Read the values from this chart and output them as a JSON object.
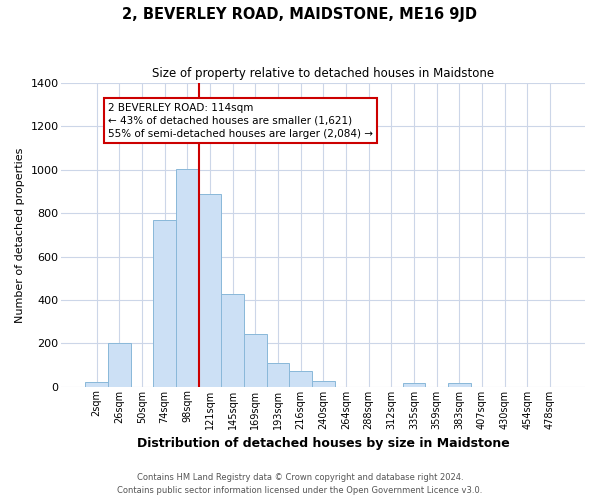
{
  "title": "2, BEVERLEY ROAD, MAIDSTONE, ME16 9JD",
  "subtitle": "Size of property relative to detached houses in Maidstone",
  "xlabel": "Distribution of detached houses by size in Maidstone",
  "ylabel": "Number of detached properties",
  "bar_labels": [
    "2sqm",
    "26sqm",
    "50sqm",
    "74sqm",
    "98sqm",
    "121sqm",
    "145sqm",
    "169sqm",
    "193sqm",
    "216sqm",
    "240sqm",
    "264sqm",
    "288sqm",
    "312sqm",
    "335sqm",
    "359sqm",
    "383sqm",
    "407sqm",
    "430sqm",
    "454sqm",
    "478sqm"
  ],
  "bar_heights": [
    20,
    200,
    0,
    770,
    1005,
    890,
    425,
    245,
    110,
    70,
    25,
    0,
    0,
    0,
    15,
    0,
    15,
    0,
    0,
    0,
    0
  ],
  "bar_color": "#cce0f5",
  "bar_edge_color": "#89b8d9",
  "ylim": [
    0,
    1400
  ],
  "yticks": [
    0,
    200,
    400,
    600,
    800,
    1000,
    1200,
    1400
  ],
  "property_line_label_idx": 5,
  "property_line_color": "#cc0000",
  "annotation_title": "2 BEVERLEY ROAD: 114sqm",
  "annotation_line1": "← 43% of detached houses are smaller (1,621)",
  "annotation_line2": "55% of semi-detached houses are larger (2,084) →",
  "annotation_box_color": "#ffffff",
  "annotation_box_edge_color": "#cc0000",
  "footer_line1": "Contains HM Land Registry data © Crown copyright and database right 2024.",
  "footer_line2": "Contains public sector information licensed under the Open Government Licence v3.0.",
  "background_color": "#ffffff",
  "grid_color": "#ccd6e8"
}
